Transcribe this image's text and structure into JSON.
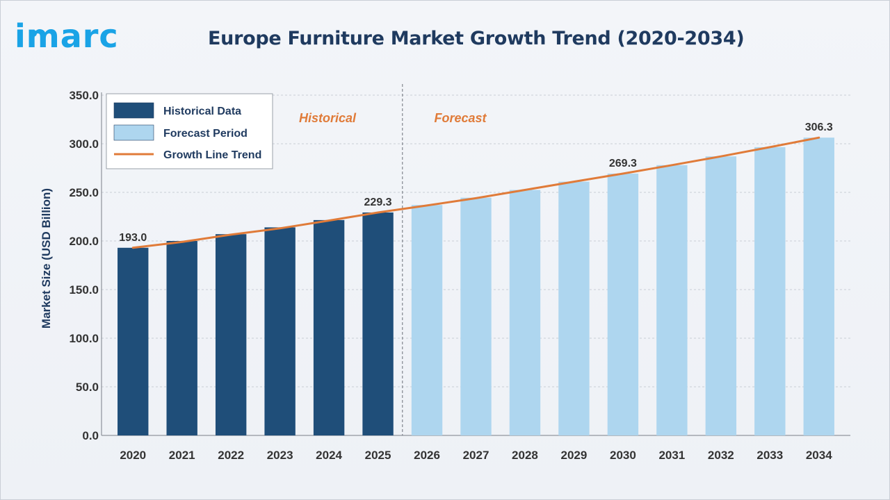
{
  "brand": {
    "logo_text": "imarc"
  },
  "colors": {
    "brand_blue": "#1aa3e6",
    "title": "#1f3a5f",
    "historical_bar": "#1f4e79",
    "forecast_bar": "#aed6ef",
    "trend_line": "#e07b39",
    "axis_text": "#333333",
    "grid": "#c9ced6",
    "section_label": "#e07b39"
  },
  "chart_data": {
    "type": "bar",
    "title": "Europe Furniture Market Growth Trend (2020-2034)",
    "xlabel": "",
    "ylabel": "Market Size (USD Billion)",
    "ylim": [
      0,
      350
    ],
    "y_ticks": [
      "0.0",
      "50.0",
      "100.0",
      "150.0",
      "200.0",
      "250.0",
      "300.0",
      "350.0"
    ],
    "grid": true,
    "legend_position": "top-left",
    "categories": [
      "2020",
      "2021",
      "2022",
      "2023",
      "2024",
      "2025",
      "2026",
      "2027",
      "2028",
      "2029",
      "2030",
      "2031",
      "2032",
      "2033",
      "2034"
    ],
    "series": [
      {
        "name": "Historical Data",
        "kind": "bar",
        "color": "#1f4e79",
        "values": [
          193.0,
          200.0,
          207.0,
          214.0,
          221.5,
          229.3,
          null,
          null,
          null,
          null,
          null,
          null,
          null,
          null,
          null
        ]
      },
      {
        "name": "Forecast Period",
        "kind": "bar",
        "color": "#aed6ef",
        "values": [
          null,
          null,
          null,
          null,
          null,
          null,
          237.0,
          244.5,
          252.5,
          261.0,
          269.3,
          278.0,
          287.0,
          296.5,
          306.3
        ]
      },
      {
        "name": "Growth Line Trend",
        "kind": "line",
        "color": "#e07b39",
        "values": [
          193.0,
          199.0,
          206.5,
          213.0,
          221.0,
          229.3,
          236.5,
          244.0,
          252.5,
          261.0,
          269.3,
          278.0,
          287.0,
          296.5,
          306.3
        ]
      }
    ],
    "data_labels": [
      {
        "category": "2020",
        "text": "193.0"
      },
      {
        "category": "2025",
        "text": "229.3"
      },
      {
        "category": "2030",
        "text": "269.3"
      },
      {
        "category": "2034",
        "text": "306.3"
      }
    ],
    "annotations": [
      {
        "text": "Historical",
        "near_category": "2023"
      },
      {
        "text": "Forecast",
        "near_category": "2026"
      }
    ],
    "divider_between": [
      "2025",
      "2026"
    ]
  }
}
